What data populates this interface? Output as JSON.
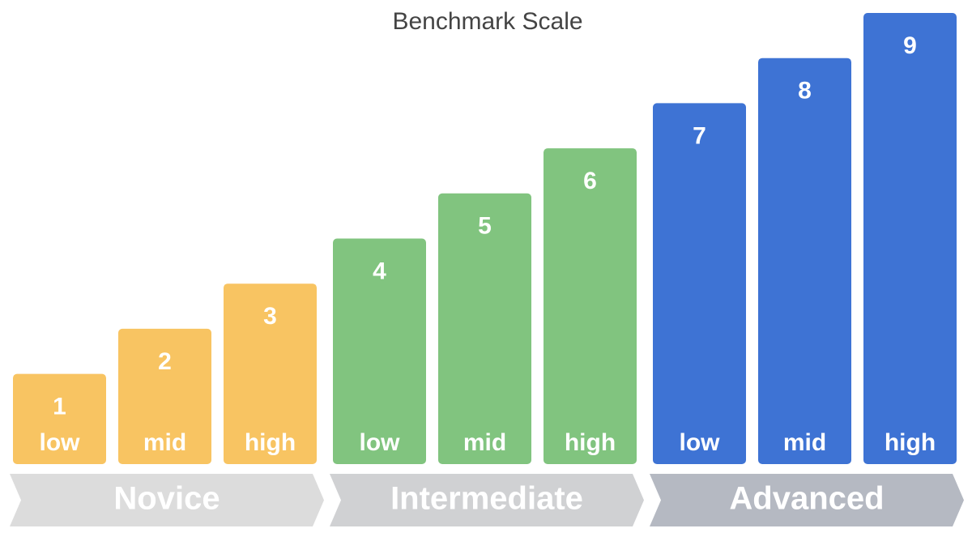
{
  "chart_data": {
    "type": "bar",
    "title": "Benchmark Scale",
    "groups": [
      {
        "name": "Novice",
        "color": "#f8c462",
        "band_color": "#dcdcdc",
        "categories": [
          "low",
          "mid",
          "high"
        ],
        "values": [
          1,
          2,
          3
        ]
      },
      {
        "name": "Intermediate",
        "color": "#81c47f",
        "band_color": "#d0d1d3",
        "categories": [
          "low",
          "mid",
          "high"
        ],
        "values": [
          4,
          5,
          6
        ]
      },
      {
        "name": "Advanced",
        "color": "#3e73d4",
        "band_color": "#b5b9c2",
        "categories": [
          "low",
          "mid",
          "high"
        ],
        "values": [
          7,
          8,
          9
        ]
      }
    ]
  }
}
